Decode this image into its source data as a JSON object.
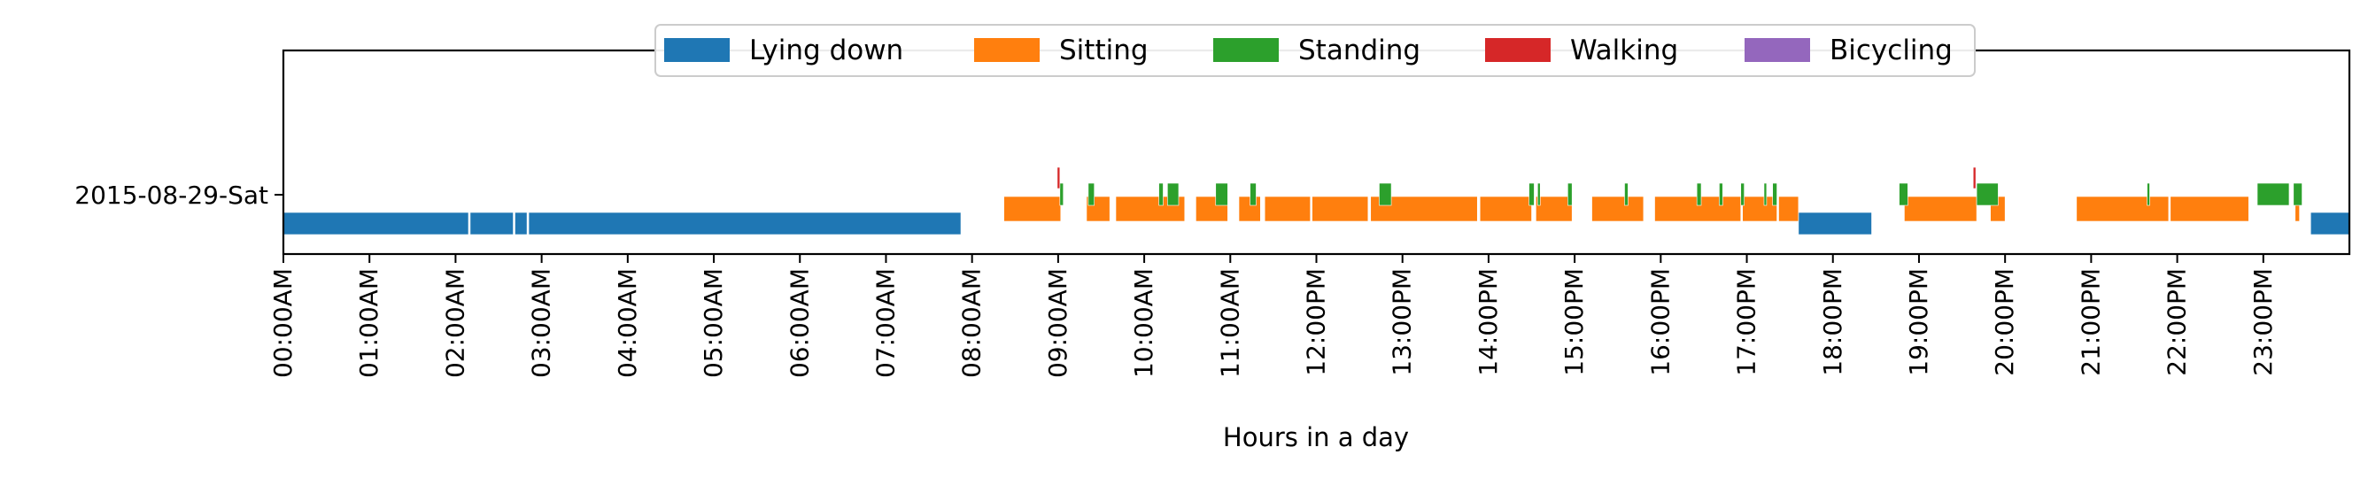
{
  "chart_data": {
    "type": "timeline",
    "xlabel": "Hours in a day",
    "xlim": [
      0,
      24
    ],
    "x_tick_labels": [
      "00:00AM",
      "01:00AM",
      "02:00AM",
      "03:00AM",
      "04:00AM",
      "05:00AM",
      "06:00AM",
      "07:00AM",
      "08:00AM",
      "09:00AM",
      "10:00AM",
      "11:00AM",
      "12:00PM",
      "13:00PM",
      "14:00PM",
      "15:00PM",
      "16:00PM",
      "17:00PM",
      "18:00PM",
      "19:00PM",
      "20:00PM",
      "21:00PM",
      "22:00PM",
      "23:00PM"
    ],
    "y_tick_labels": [
      "2015-08-29-Sat"
    ],
    "legend_position": "top-center",
    "grid": false,
    "series": [
      {
        "name": "Lying down",
        "color": "#1f77b4",
        "level": "low",
        "intervals": [
          [
            0.0,
            2.15
          ],
          [
            2.17,
            2.67
          ],
          [
            2.69,
            2.83
          ],
          [
            2.85,
            7.87
          ],
          [
            17.6,
            18.45
          ],
          [
            23.55,
            24.0
          ]
        ]
      },
      {
        "name": "Sitting",
        "color": "#ff7f0e",
        "level": "mid",
        "intervals": [
          [
            8.37,
            9.03
          ],
          [
            9.33,
            9.6
          ],
          [
            9.67,
            10.47
          ],
          [
            10.6,
            10.97
          ],
          [
            11.1,
            11.35
          ],
          [
            11.4,
            11.93
          ],
          [
            11.95,
            12.6
          ],
          [
            12.63,
            13.87
          ],
          [
            13.9,
            14.5
          ],
          [
            14.55,
            14.97
          ],
          [
            15.2,
            15.8
          ],
          [
            15.93,
            16.93
          ],
          [
            16.95,
            17.35
          ],
          [
            17.37,
            17.6
          ],
          [
            18.83,
            19.67
          ],
          [
            19.83,
            20.0
          ],
          [
            20.83,
            21.9
          ],
          [
            21.92,
            22.83
          ],
          [
            23.37,
            23.42
          ]
        ]
      },
      {
        "name": "Standing",
        "color": "#2ca02c",
        "level": "high",
        "intervals": [
          [
            9.02,
            9.06
          ],
          [
            9.35,
            9.42
          ],
          [
            10.17,
            10.22
          ],
          [
            10.27,
            10.4
          ],
          [
            10.83,
            10.97
          ],
          [
            11.23,
            11.3
          ],
          [
            12.73,
            12.87
          ],
          [
            14.47,
            14.53
          ],
          [
            14.57,
            14.6
          ],
          [
            14.92,
            14.97
          ],
          [
            15.58,
            15.62
          ],
          [
            16.42,
            16.47
          ],
          [
            16.68,
            16.72
          ],
          [
            16.93,
            16.97
          ],
          [
            17.2,
            17.23
          ],
          [
            17.3,
            17.35
          ],
          [
            18.77,
            18.87
          ],
          [
            19.67,
            19.92
          ],
          [
            21.65,
            21.68
          ],
          [
            22.93,
            23.3
          ],
          [
            23.35,
            23.45
          ]
        ]
      },
      {
        "name": "Walking",
        "color": "#d62728",
        "level": "top",
        "intervals": [
          [
            8.99,
            9.02
          ],
          [
            19.63,
            19.66
          ]
        ]
      },
      {
        "name": "Bicycling",
        "color": "#9467bd",
        "level": "top",
        "intervals": []
      }
    ]
  }
}
